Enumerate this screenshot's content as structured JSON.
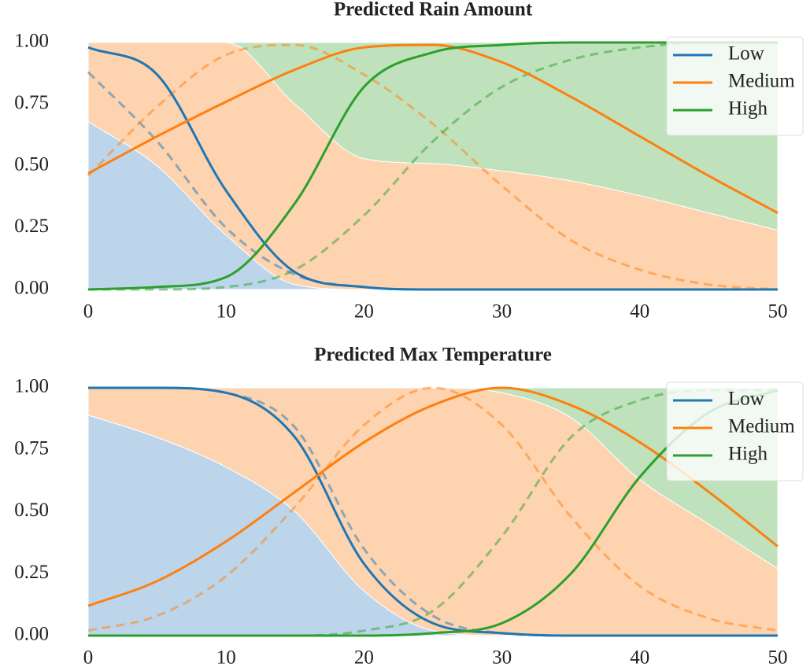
{
  "chart_data": [
    {
      "type": "line",
      "title": "Predicted Rain Amount",
      "x": [
        0,
        5,
        10,
        15,
        20,
        25,
        30,
        35,
        40,
        45,
        50
      ],
      "xlim": [
        0,
        50
      ],
      "xticks": [
        0,
        10,
        20,
        30,
        40,
        50
      ],
      "ylim": [
        0,
        1
      ],
      "yticks": [
        {
          "value": 0,
          "label": "0.00"
        },
        {
          "value": 0.25,
          "label": "0.25"
        },
        {
          "value": 0.5,
          "label": "0.50"
        },
        {
          "value": 0.75,
          "label": "0.75"
        },
        {
          "value": 1,
          "label": "1.00"
        }
      ],
      "legend": "upper right",
      "series": [
        {
          "name": "Low",
          "color": "#1f77b4",
          "values": [
            0.98,
            0.87,
            0.4,
            0.07,
            0.01,
            0,
            0,
            0,
            0,
            0,
            0
          ]
        },
        {
          "name": "Medium",
          "color": "#ff7f0e",
          "values": [
            0.47,
            0.62,
            0.76,
            0.89,
            0.98,
            0.99,
            0.92,
            0.78,
            0.62,
            0.46,
            0.31
          ]
        },
        {
          "name": "High",
          "color": "#2ca02c",
          "values": [
            0,
            0.01,
            0.05,
            0.35,
            0.82,
            0.96,
            0.99,
            1,
            1,
            1,
            1
          ]
        }
      ],
      "dashed_series": [
        {
          "color": "#1f77b4",
          "values": [
            0.88,
            0.6,
            0.25,
            0.06,
            0.01,
            0,
            0,
            0,
            0,
            0,
            0
          ]
        },
        {
          "color": "#ff7f0e",
          "values": [
            0.46,
            0.74,
            0.95,
            0.99,
            0.87,
            0.67,
            0.42,
            0.2,
            0.08,
            0.02,
            0
          ]
        },
        {
          "color": "#2ca02c",
          "values": [
            0,
            0,
            0.01,
            0.08,
            0.3,
            0.6,
            0.82,
            0.93,
            0.98,
            1,
            1
          ]
        }
      ],
      "areas": [
        {
          "color": "#bcd5ea",
          "values": [
            0.68,
            0.5,
            0.22,
            0.02,
            0,
            0,
            0,
            0,
            0,
            0,
            0
          ]
        },
        {
          "color": "#fdd3b0",
          "values": [
            0.32,
            0.5,
            0.78,
            0.73,
            0.53,
            0.51,
            0.48,
            0.44,
            0.38,
            0.31,
            0.24
          ]
        },
        {
          "color": "#bfe2bc",
          "values": [
            0,
            0,
            0,
            0.25,
            0.47,
            0.49,
            0.52,
            0.56,
            0.62,
            0.69,
            0.76
          ]
        }
      ]
    },
    {
      "type": "line",
      "title": "Predicted Max Temperature",
      "x": [
        0,
        5,
        10,
        15,
        20,
        25,
        30,
        35,
        40,
        45,
        50
      ],
      "xlim": [
        0,
        50
      ],
      "xticks": [
        0,
        10,
        20,
        30,
        40,
        50
      ],
      "ylim": [
        0,
        1
      ],
      "yticks": [
        {
          "value": 0,
          "label": "0.00"
        },
        {
          "value": 0.25,
          "label": "0.25"
        },
        {
          "value": 0.5,
          "label": "0.50"
        },
        {
          "value": 0.75,
          "label": "0.75"
        },
        {
          "value": 1,
          "label": "1.00"
        }
      ],
      "legend": "upper right",
      "series": [
        {
          "name": "Low",
          "color": "#1f77b4",
          "values": [
            1,
            1,
            0.98,
            0.8,
            0.29,
            0.05,
            0.01,
            0,
            0,
            0,
            0
          ]
        },
        {
          "name": "Medium",
          "color": "#ff7f0e",
          "values": [
            0.12,
            0.22,
            0.38,
            0.58,
            0.78,
            0.93,
            1,
            0.93,
            0.78,
            0.58,
            0.36
          ]
        },
        {
          "name": "High",
          "color": "#2ca02c",
          "values": [
            0,
            0,
            0,
            0,
            0,
            0.01,
            0.05,
            0.25,
            0.64,
            0.9,
            0.99
          ]
        }
      ],
      "dashed_series": [
        {
          "color": "#1f77b4",
          "values": [
            1,
            1,
            0.98,
            0.84,
            0.35,
            0.08,
            0.01,
            0,
            0,
            0,
            0
          ]
        },
        {
          "color": "#ff7f0e",
          "values": [
            0.02,
            0.08,
            0.24,
            0.52,
            0.85,
            1,
            0.85,
            0.48,
            0.2,
            0.07,
            0.02
          ]
        },
        {
          "color": "#2ca02c",
          "values": [
            0,
            0,
            0,
            0,
            0.02,
            0.1,
            0.4,
            0.8,
            0.95,
            0.99,
            0.99
          ]
        }
      ],
      "areas": [
        {
          "color": "#bcd5ea",
          "values": [
            0.89,
            0.8,
            0.68,
            0.5,
            0.18,
            0.02,
            0,
            0,
            0,
            0,
            0
          ]
        },
        {
          "color": "#fdd3b0",
          "values": [
            0.11,
            0.2,
            0.32,
            0.5,
            0.82,
            0.98,
            0.98,
            0.88,
            0.63,
            0.45,
            0.27
          ]
        },
        {
          "color": "#bfe2bc",
          "values": [
            0,
            0,
            0,
            0,
            0,
            0,
            0.02,
            0.12,
            0.37,
            0.55,
            0.73
          ]
        }
      ]
    }
  ]
}
